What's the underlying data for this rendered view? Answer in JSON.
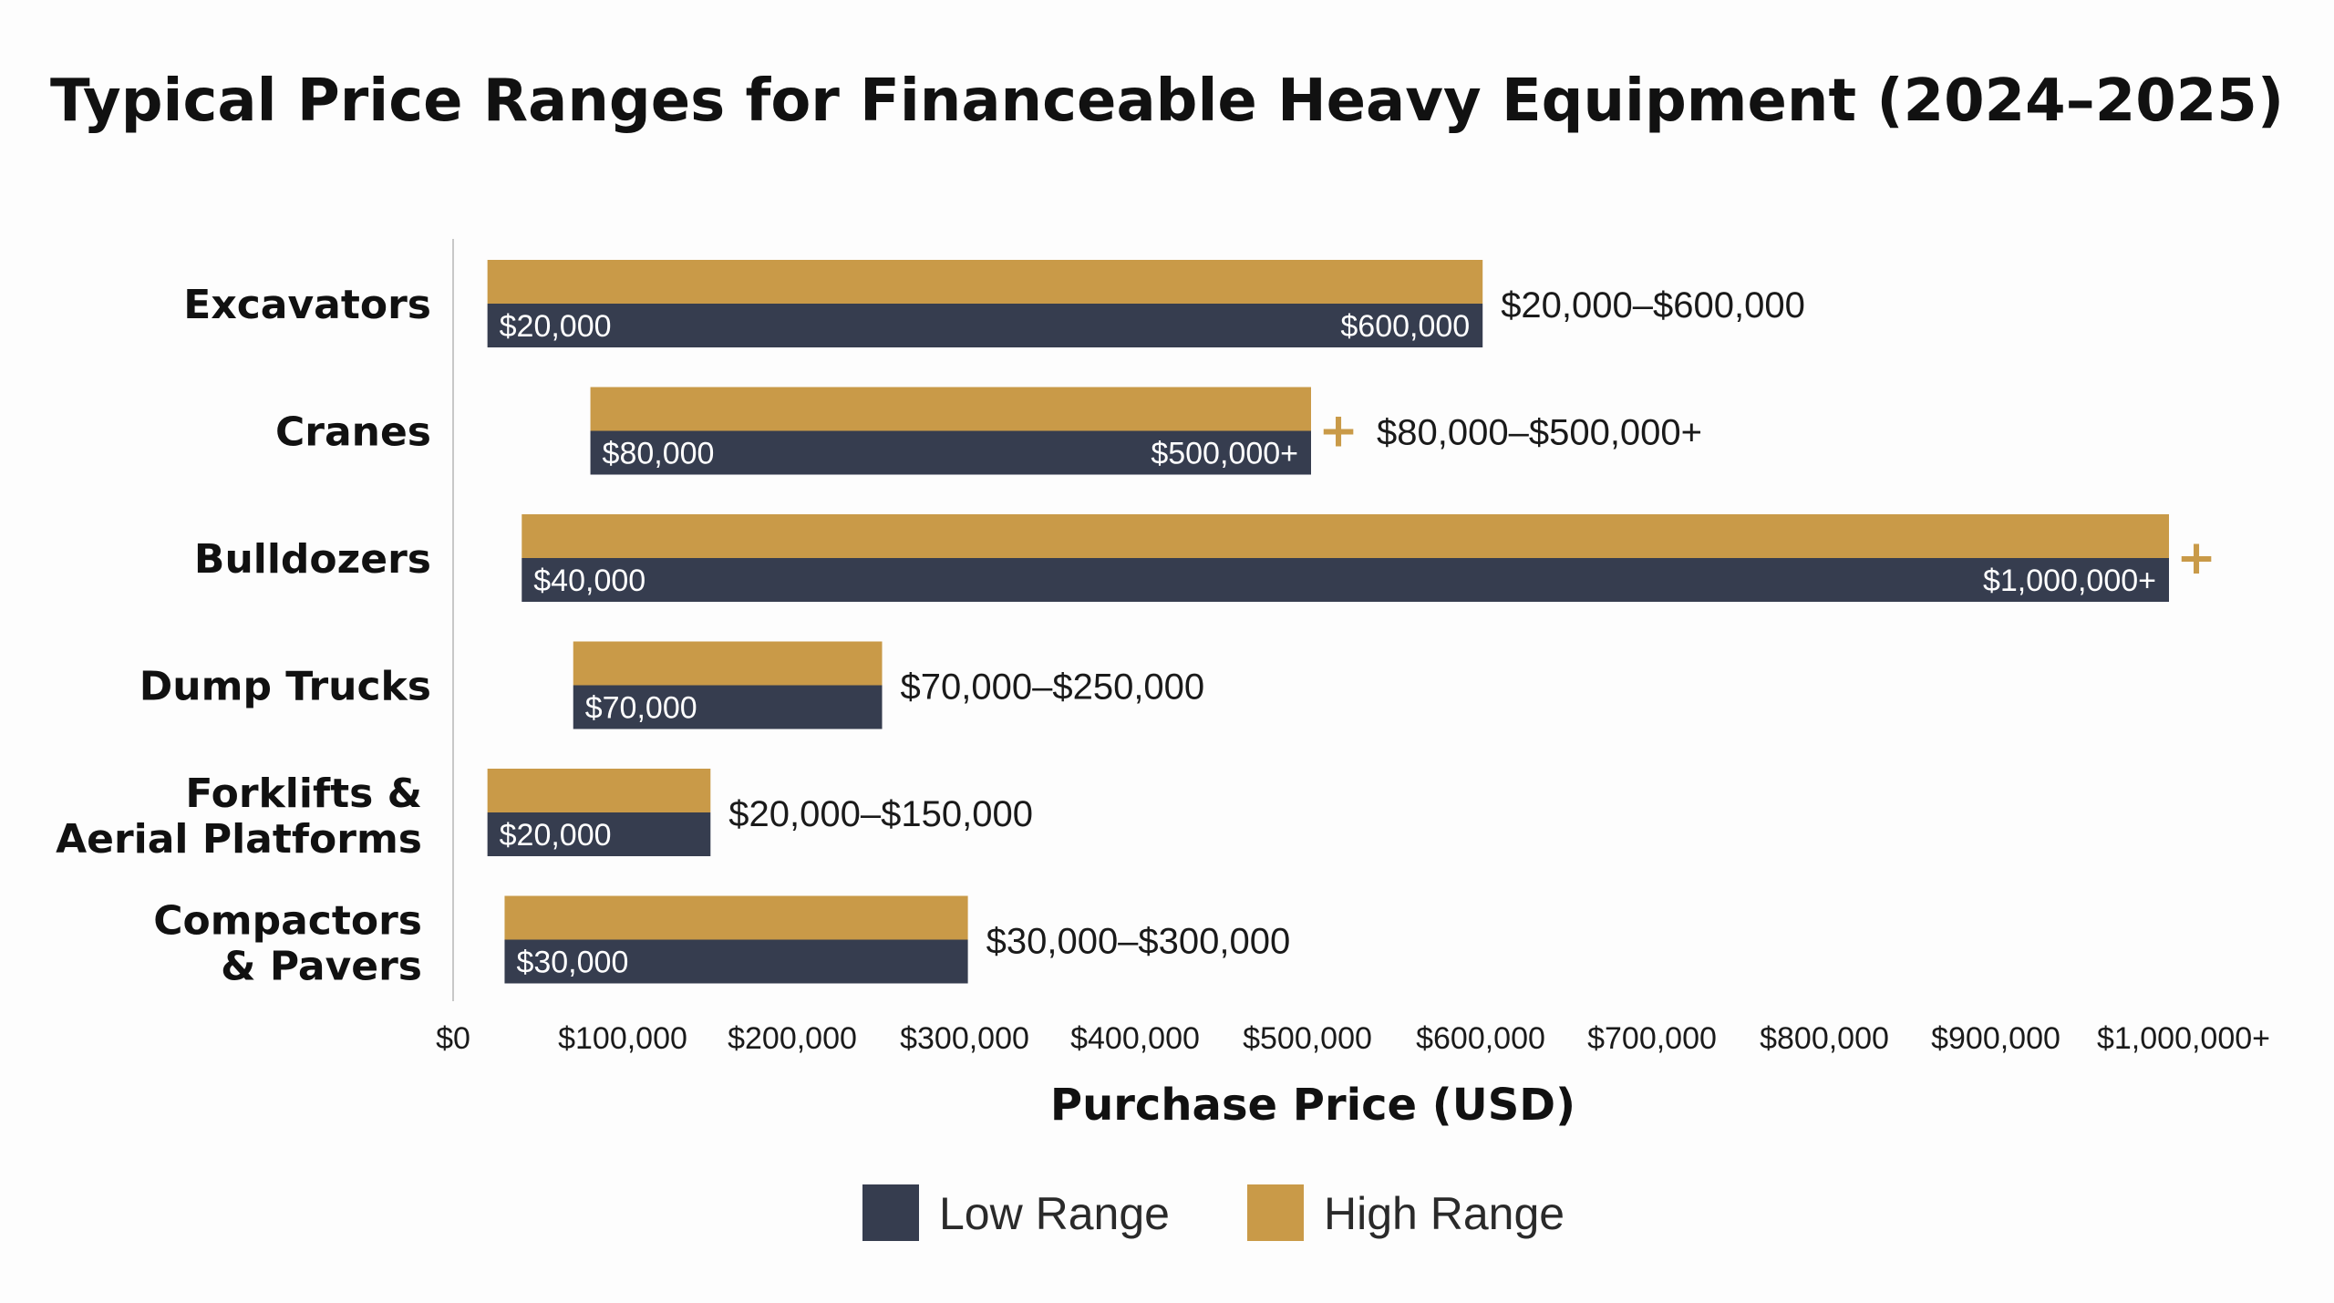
{
  "chart_data": {
    "type": "bar",
    "title": "Typical Price Ranges for Financeable Heavy Equipment (2024–2025)",
    "xlabel": "Purchase Price (USD)",
    "ylabel": "",
    "xlim": [
      0,
      1000000
    ],
    "grid": false,
    "legend_position": "bottom",
    "x_ticks": [
      "$0",
      "$100,000",
      "$200,000",
      "$300,000",
      "$400,000",
      "$500,000",
      "$600,000",
      "$700,000",
      "$800,000",
      "$900,000",
      "$1,000,000+"
    ],
    "colors": {
      "low": "#363d4f",
      "high": "#c99a48",
      "axis": "#c8c8c8"
    },
    "series": [
      {
        "name": "Low Range",
        "color": "#363d4f"
      },
      {
        "name": "High Range",
        "color": "#c99a48"
      }
    ],
    "categories": [
      {
        "name": [
          "Excavators"
        ],
        "low": 20000,
        "high": 600000,
        "low_label": "$20,000",
        "high_label": "$600,000",
        "range_label": "$20,000–$600,000",
        "plus": false
      },
      {
        "name": [
          "Cranes"
        ],
        "low": 80000,
        "high": 500000,
        "low_label": "$80,000",
        "high_label": "$500,000+",
        "range_label": "$80,000–$500,000+",
        "plus": true
      },
      {
        "name": [
          "Bulldozers"
        ],
        "low": 40000,
        "high": 1000000,
        "low_label": "$40,000",
        "high_label": "$1,000,000+",
        "range_label": "",
        "plus": true
      },
      {
        "name": [
          "Dump Trucks"
        ],
        "low": 70000,
        "high": 250000,
        "low_label": "$70,000",
        "high_label": "",
        "range_label": "$70,000–$250,000",
        "plus": false
      },
      {
        "name": [
          "Forklifts &",
          "Aerial Platforms"
        ],
        "low": 20000,
        "high": 150000,
        "low_label": "$20,000",
        "high_label": "",
        "range_label": "$20,000–$150,000",
        "plus": false
      },
      {
        "name": [
          "Compactors",
          "& Pavers"
        ],
        "low": 30000,
        "high": 300000,
        "low_label": "$30,000",
        "high_label": "",
        "range_label": "$30,000–$300,000",
        "plus": false
      }
    ]
  }
}
